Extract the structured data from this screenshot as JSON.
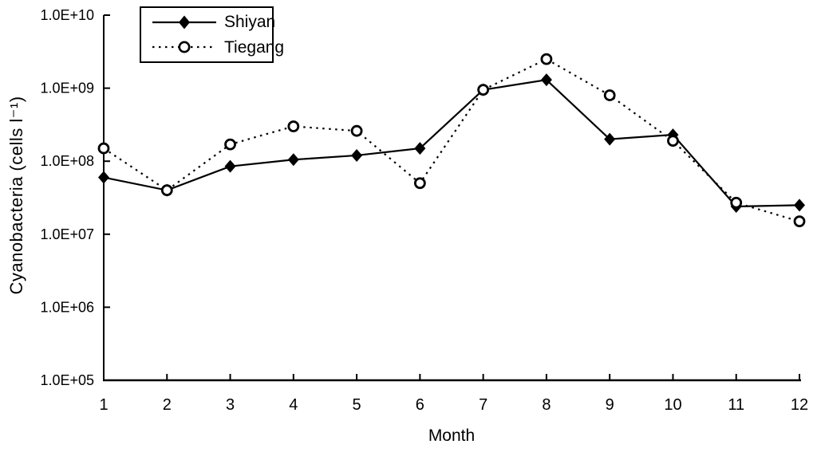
{
  "figure": {
    "background_color": "#ffffff",
    "ink_color": "#000000"
  },
  "chart_data": {
    "type": "line",
    "title": "",
    "xlabel": "Month",
    "ylabel": "Cyanobacteria (cells l⁻¹)",
    "y_scale": "log",
    "ylim": [
      100000.0,
      10000000000.0
    ],
    "ytick_labels": [
      "1.0E+10",
      "1.0E+09",
      "1.0E+08",
      "1.0E+07",
      "1.0E+06",
      "1.0E+05"
    ],
    "xtick_labels": [
      "1",
      "2",
      "3",
      "4",
      "5",
      "6",
      "7",
      "8",
      "9",
      "10",
      "11",
      "12"
    ],
    "x": [
      1,
      2,
      3,
      4,
      5,
      6,
      7,
      8,
      9,
      10,
      11,
      12
    ],
    "grid": false,
    "legend_position": "top-left-inside",
    "series": [
      {
        "name": "Shiyan",
        "line_style": "solid",
        "marker": "filled-diamond",
        "color": "#000000",
        "values": [
          60000000.0,
          40000000.0,
          85000000.0,
          105000000.0,
          120000000.0,
          150000000.0,
          950000000.0,
          1300000000.0,
          200000000.0,
          230000000.0,
          24000000.0,
          25000000.0
        ]
      },
      {
        "name": "Tiegang",
        "line_style": "dotted",
        "marker": "open-circle",
        "color": "#000000",
        "values": [
          150000000.0,
          40000000.0,
          170000000.0,
          300000000.0,
          260000000.0,
          50000000.0,
          950000000.0,
          2500000000.0,
          800000000.0,
          190000000.0,
          27000000.0,
          15000000.0
        ]
      }
    ]
  }
}
